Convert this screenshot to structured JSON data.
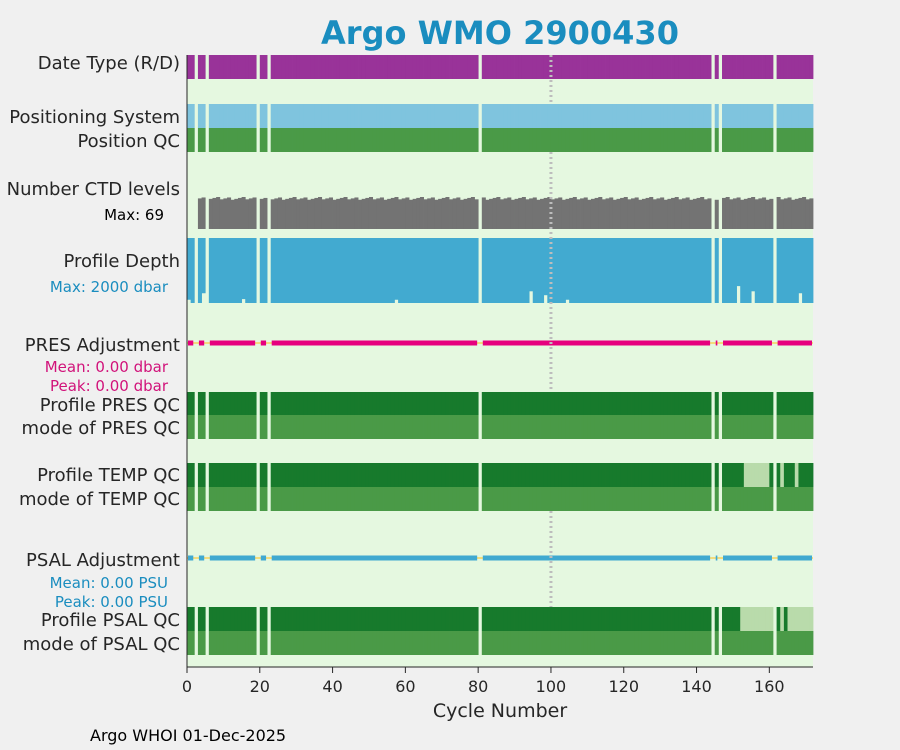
{
  "chart_data": {
    "type": "bar",
    "title": "Argo WMO 2900430",
    "xlabel": "Cycle Number",
    "xlim": [
      0,
      172
    ],
    "xticks": [
      0,
      20,
      40,
      60,
      80,
      100,
      120,
      140,
      160
    ],
    "footer": "Argo WHOI 01-Dec-2025",
    "marker_cycle": 100,
    "gap_cycles": [
      2,
      5,
      19,
      22,
      80,
      144,
      146,
      161
    ],
    "labels": {
      "date_type": "Date Type (R/D)",
      "positioning": "Positioning System",
      "position_qc": "Position QC",
      "ctd_levels": "Number CTD levels",
      "ctd_max": "Max: 69",
      "profile_depth": "Profile Depth",
      "depth_max": "Max: 2000 dbar",
      "pres_adj": "PRES Adjustment",
      "pres_mean": "Mean: 0.00 dbar",
      "pres_peak": "Peak: 0.00 dbar",
      "profile_pres_qc": "Profile PRES QC",
      "mode_pres_qc": "mode of PRES QC",
      "profile_temp_qc": "Profile TEMP QC",
      "mode_temp_qc": "mode of TEMP QC",
      "psal_adj": "PSAL Adjustment",
      "psal_mean": "Mean: 0.00 PSU",
      "psal_peak": "Peak: 0.00 PSU",
      "profile_psal_qc": "Profile PSAL QC",
      "mode_psal_qc": "mode of PSAL QC"
    },
    "ctd_levels_max": 69,
    "ctd_levels": [
      {
        "cycle_range": [
          3,
          79
        ],
        "values": "approx 63-69 per cycle"
      }
    ],
    "depth_max_dbar": 2000,
    "shallow_depth_cycles": [
      {
        "cycle": 0,
        "fraction": 0.95
      },
      {
        "cycle": 4,
        "fraction": 0.85
      },
      {
        "cycle": 15,
        "fraction": 0.94
      },
      {
        "cycle": 57,
        "fraction": 0.95
      },
      {
        "cycle": 94,
        "fraction": 0.82
      },
      {
        "cycle": 98,
        "fraction": 0.88
      },
      {
        "cycle": 104,
        "fraction": 0.95
      },
      {
        "cycle": 151,
        "fraction": 0.74
      },
      {
        "cycle": 155,
        "fraction": 0.82
      },
      {
        "cycle": 168,
        "fraction": 0.85
      }
    ],
    "temp_profile_light_cycles": [
      153,
      154,
      155,
      156,
      157,
      158,
      159,
      163,
      167
    ],
    "psal_profile_light_cycles": [
      152,
      153,
      154,
      155,
      156,
      157,
      158,
      159,
      160,
      163,
      165,
      166,
      167,
      168,
      169,
      170,
      171
    ],
    "colors": {
      "title": "#1a8dbf",
      "magenta": "#d1127a",
      "blue_text": "#1a8dbf",
      "date_type": "#993399",
      "positioning": "#7fc4de",
      "position_qc": "#4a9a47",
      "ctd": "#737373",
      "depth": "#42aad0",
      "profile_qc": "#177a2c",
      "mode_qc": "#4a9a47",
      "profile_qc_light": "#b9dbab",
      "track_bg": "#e5f8e0",
      "pres_line": "#e6007e",
      "psal_line": "#40a9d0",
      "adj_base": "#f2dc7d",
      "marker": "#bdbdbd"
    }
  }
}
